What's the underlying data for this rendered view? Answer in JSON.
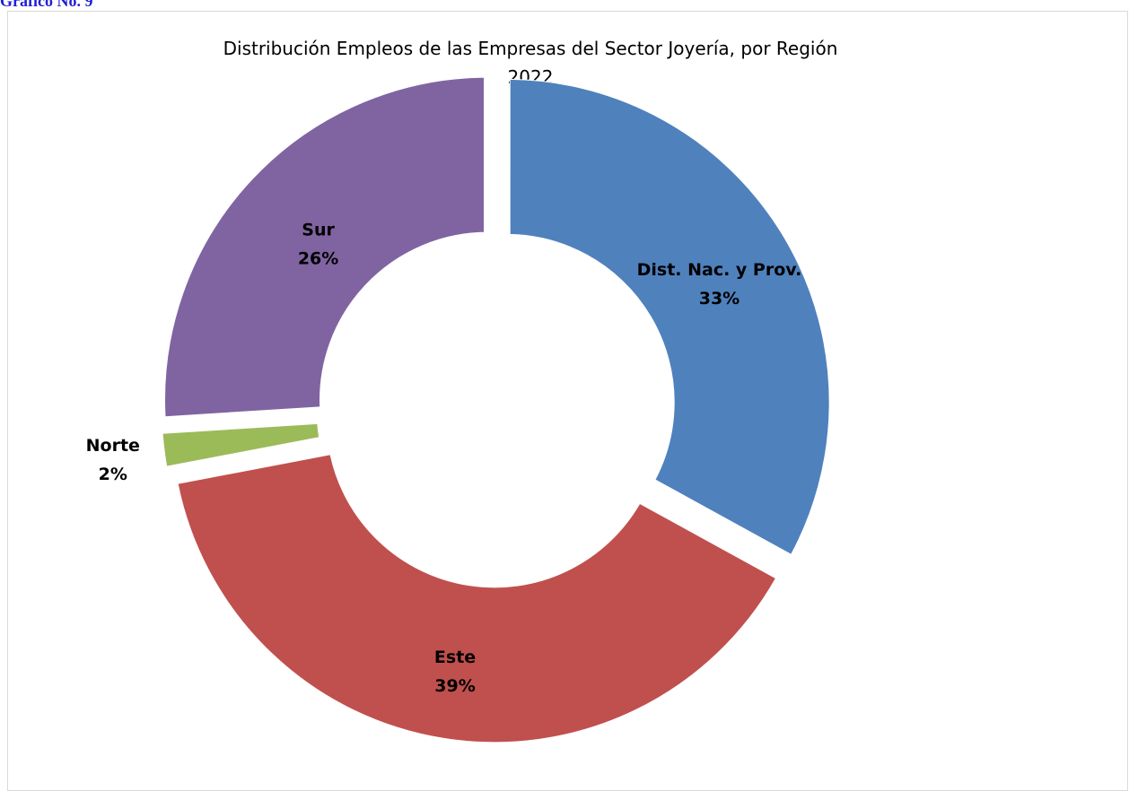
{
  "caption": "Gráfico No. 9",
  "chart_data": {
    "type": "pie",
    "variant": "doughnut",
    "title": "Distribución Empleos de las Empresas del Sector Joyería, por Región",
    "subtitle": "2022",
    "slices": [
      {
        "name": "Dist. Nac. y Prov.",
        "value": 33,
        "label": "33%",
        "color": "#4f81bd"
      },
      {
        "name": "Este",
        "value": 39,
        "label": "39%",
        "color": "#c0504d"
      },
      {
        "name": "Norte",
        "value": 2,
        "label": "2%",
        "color": "#9bbb59"
      },
      {
        "name": "Sur",
        "value": 26,
        "label": "26%",
        "color": "#8064a2"
      }
    ],
    "legend": "none",
    "data_labels": "category and percent"
  }
}
